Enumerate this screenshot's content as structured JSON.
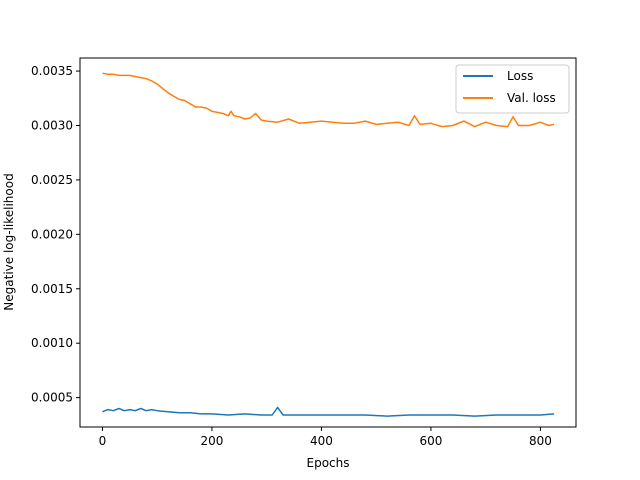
{
  "chart_data": {
    "type": "line",
    "xlabel": "Epochs",
    "ylabel": "Negative log-likelihood",
    "xlim": [
      -41,
      865
    ],
    "ylim": [
      0.00023,
      0.00362
    ],
    "xticks": [
      0,
      200,
      400,
      600,
      800
    ],
    "xtick_labels": [
      "0",
      "200",
      "400",
      "600",
      "800"
    ],
    "yticks": [
      0.0005,
      0.001,
      0.0015,
      0.002,
      0.0025,
      0.003,
      0.0035
    ],
    "ytick_labels": [
      "0.0005",
      "0.0010",
      "0.0015",
      "0.0020",
      "0.0025",
      "0.0030",
      "0.0035"
    ],
    "legend_position": "top-right",
    "grid": false,
    "series": [
      {
        "name": "Loss",
        "color": "#1f77b4",
        "x": [
          0,
          10,
          20,
          30,
          40,
          50,
          60,
          70,
          80,
          90,
          100,
          120,
          140,
          160,
          180,
          200,
          230,
          260,
          290,
          310,
          320,
          330,
          360,
          400,
          440,
          480,
          520,
          560,
          600,
          640,
          680,
          720,
          760,
          800,
          825
        ],
        "y": [
          0.00037,
          0.00039,
          0.00038,
          0.0004,
          0.00038,
          0.00039,
          0.00038,
          0.0004,
          0.00038,
          0.00039,
          0.00038,
          0.00037,
          0.00036,
          0.00036,
          0.00035,
          0.00035,
          0.00034,
          0.00035,
          0.00034,
          0.00034,
          0.00041,
          0.00034,
          0.00034,
          0.00034,
          0.00034,
          0.00034,
          0.00033,
          0.00034,
          0.00034,
          0.00034,
          0.00033,
          0.00034,
          0.00034,
          0.00034,
          0.00035
        ]
      },
      {
        "name": "Val. loss",
        "color": "#ff7f0e",
        "x": [
          0,
          10,
          20,
          30,
          40,
          50,
          60,
          70,
          80,
          90,
          100,
          110,
          120,
          130,
          140,
          150,
          160,
          170,
          180,
          190,
          200,
          210,
          220,
          230,
          235,
          240,
          250,
          260,
          270,
          280,
          290,
          300,
          320,
          340,
          360,
          380,
          400,
          420,
          440,
          460,
          480,
          500,
          520,
          540,
          560,
          570,
          580,
          600,
          620,
          640,
          660,
          680,
          700,
          720,
          740,
          750,
          760,
          780,
          800,
          815,
          825
        ],
        "y": [
          0.00348,
          0.00347,
          0.00347,
          0.00346,
          0.00346,
          0.00346,
          0.00345,
          0.00344,
          0.00343,
          0.00341,
          0.00338,
          0.00334,
          0.0033,
          0.00327,
          0.00324,
          0.00323,
          0.0032,
          0.00317,
          0.00317,
          0.00316,
          0.00313,
          0.00312,
          0.00311,
          0.00309,
          0.00313,
          0.00309,
          0.00308,
          0.00306,
          0.00307,
          0.00311,
          0.00305,
          0.00304,
          0.00303,
          0.00306,
          0.00302,
          0.00303,
          0.00304,
          0.00303,
          0.00302,
          0.00302,
          0.00304,
          0.00301,
          0.00302,
          0.00303,
          0.003,
          0.00309,
          0.00301,
          0.00302,
          0.00299,
          0.003,
          0.00304,
          0.00299,
          0.00303,
          0.003,
          0.00299,
          0.00308,
          0.003,
          0.003,
          0.00303,
          0.003,
          0.00301
        ]
      }
    ]
  }
}
